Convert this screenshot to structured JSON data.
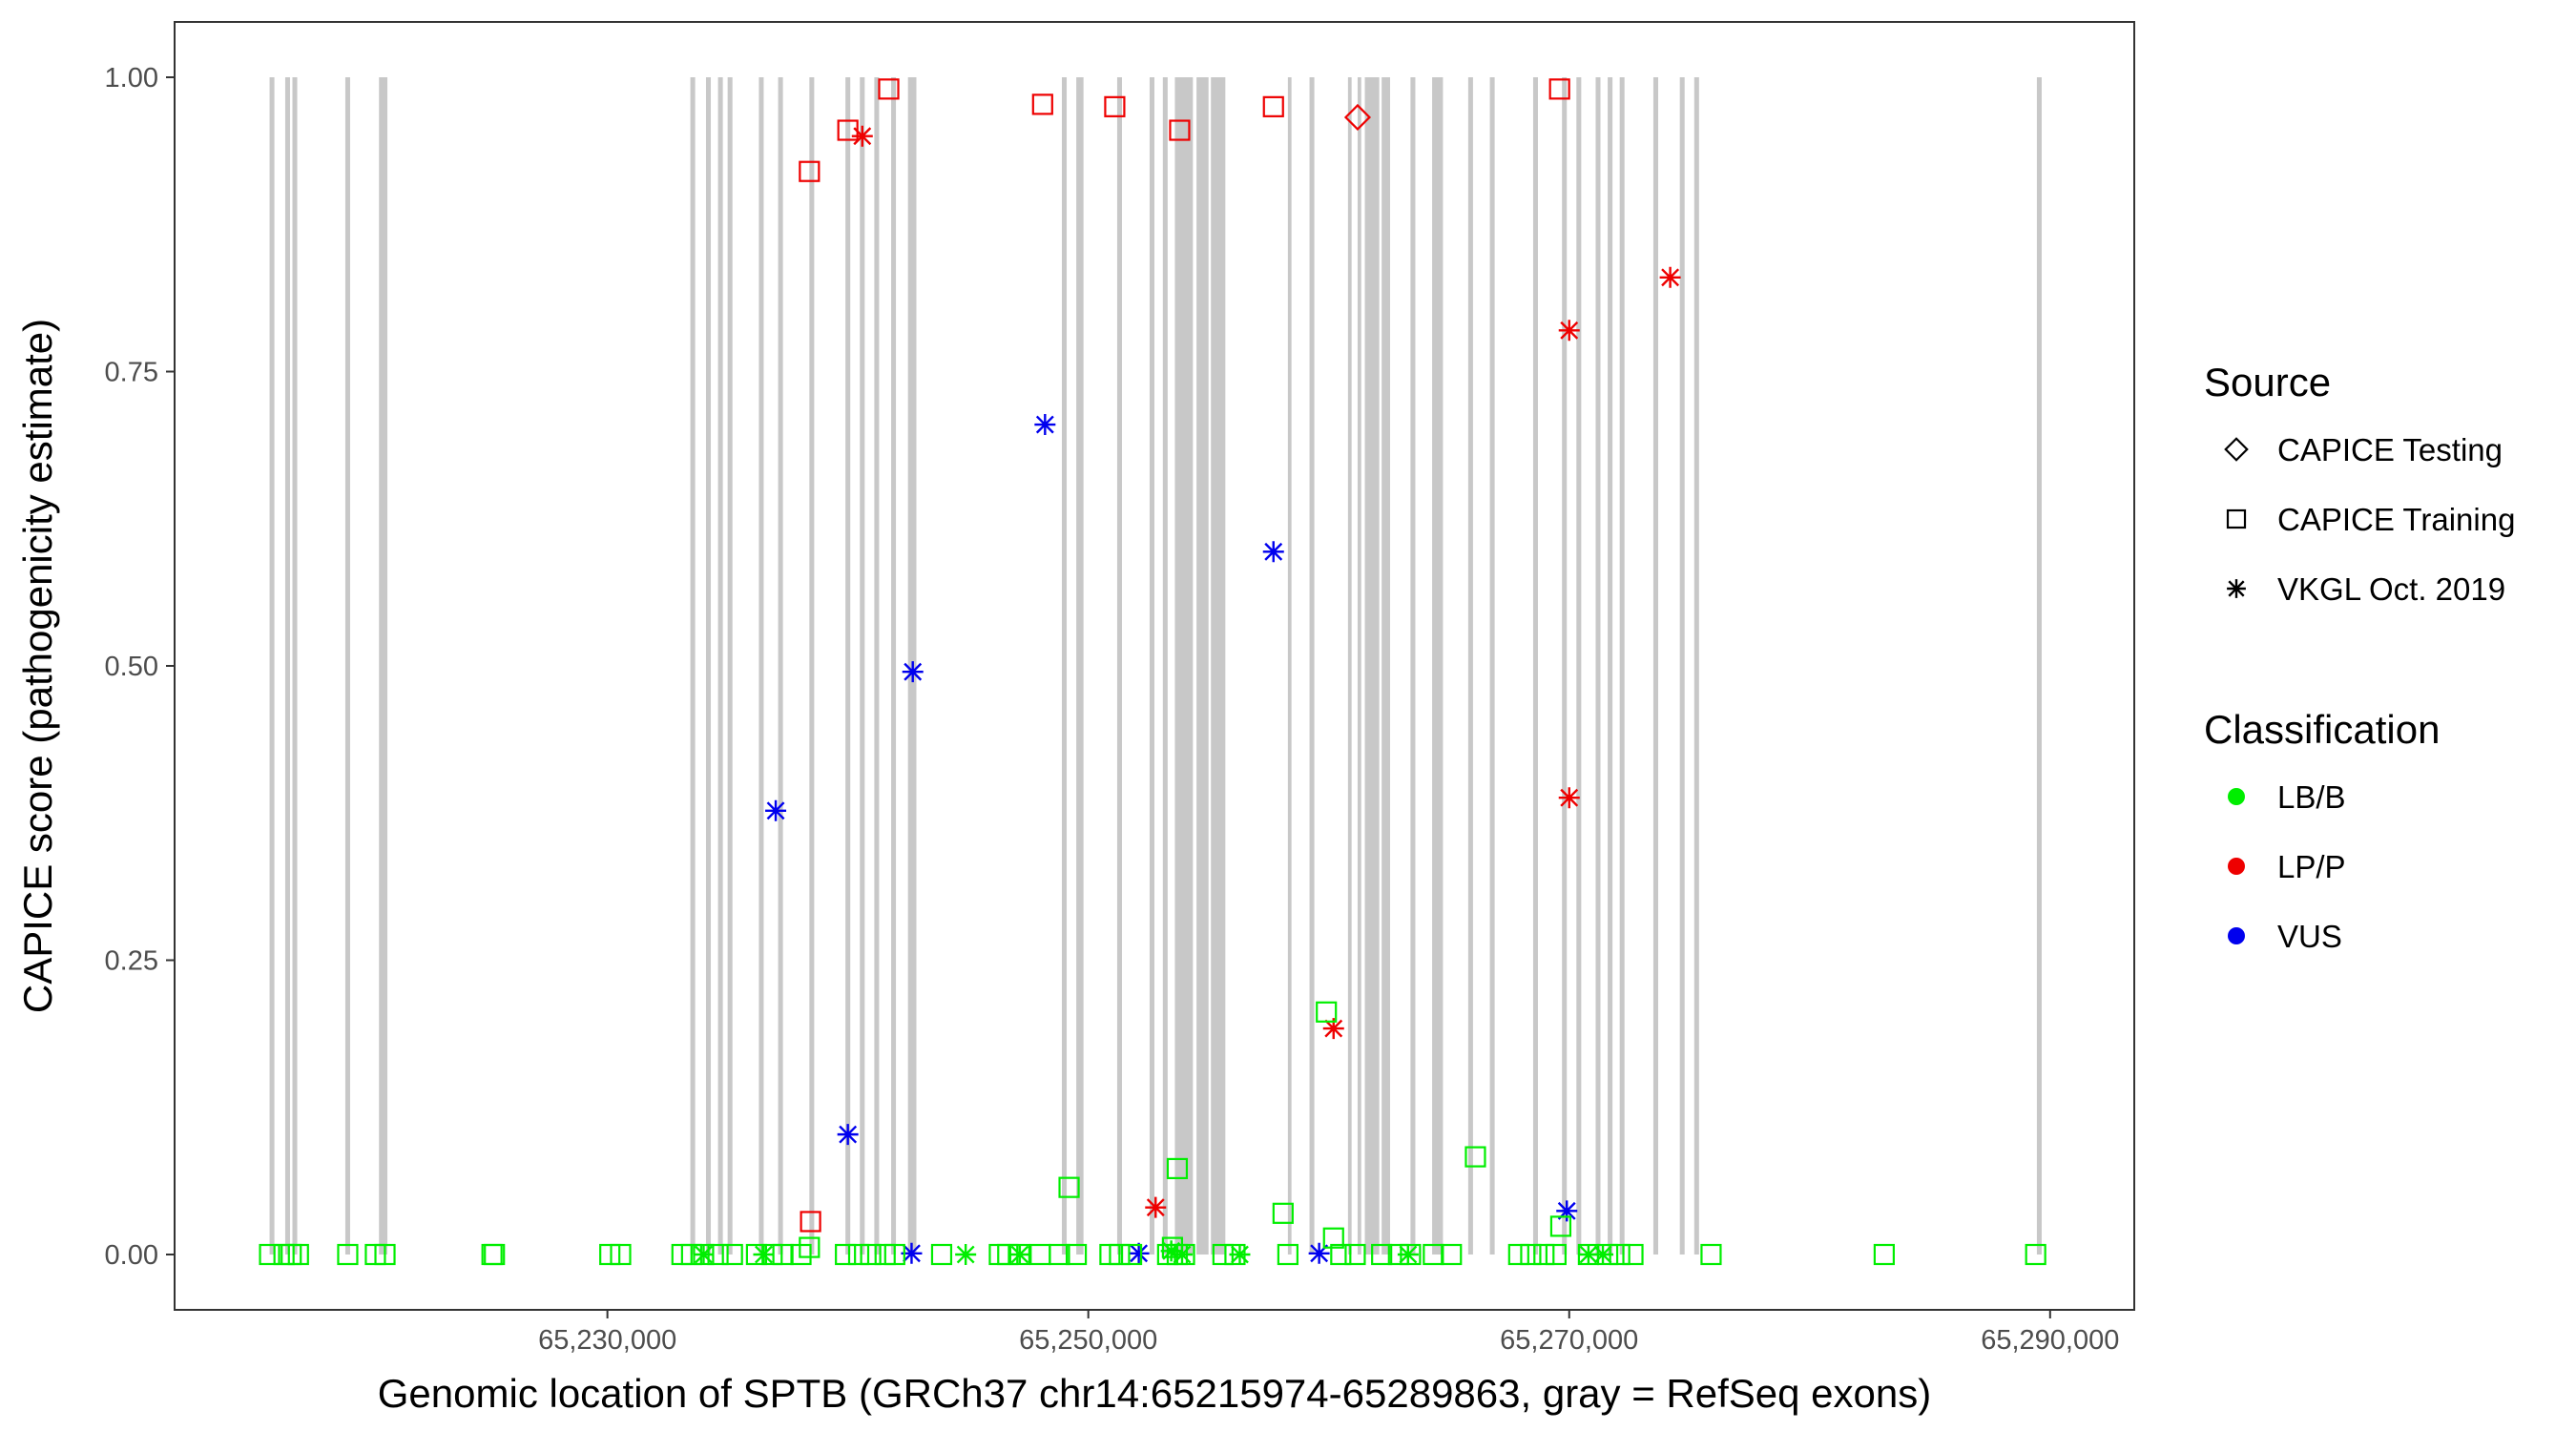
{
  "chart_data": {
    "type": "scatter",
    "title": "",
    "xlabel": "Genomic location of SPTB (GRCh37 chr14:65215974-65289863, gray = RefSeq exons)",
    "ylabel": "CAPICE score (pathogenicity estimate)",
    "xlim": [
      65212000,
      65293500
    ],
    "ylim": [
      -0.047,
      1.047
    ],
    "x_ticks": [
      65230000,
      65250000,
      65270000,
      65290000
    ],
    "x_tick_labels": [
      "65,230,000",
      "65,250,000",
      "65,270,000",
      "65,290,000"
    ],
    "y_ticks": [
      0,
      0.25,
      0.5,
      0.75,
      1
    ],
    "y_tick_labels": [
      "0.00",
      "0.25",
      "0.50",
      "0.75",
      "1.00"
    ],
    "grid": false,
    "exon_color": "#c8c8c8",
    "exons": [
      [
        65215950,
        65216150
      ],
      [
        65216600,
        65216800
      ],
      [
        65216900,
        65217100
      ],
      [
        65219100,
        65219300
      ],
      [
        65220500,
        65220850
      ],
      [
        65233450,
        65233650
      ],
      [
        65234100,
        65234300
      ],
      [
        65234600,
        65234800
      ],
      [
        65235000,
        65235200
      ],
      [
        65236300,
        65236500
      ],
      [
        65237100,
        65237300
      ],
      [
        65238400,
        65238600
      ],
      [
        65239900,
        65240100
      ],
      [
        65240500,
        65240700
      ],
      [
        65241100,
        65241300
      ],
      [
        65241800,
        65242000
      ],
      [
        65242500,
        65242850
      ],
      [
        65248900,
        65249100
      ],
      [
        65249500,
        65249800
      ],
      [
        65251200,
        65251400
      ],
      [
        65252550,
        65252750
      ],
      [
        65253100,
        65253300
      ],
      [
        65253600,
        65254350
      ],
      [
        65254500,
        65255000
      ],
      [
        65255100,
        65255700
      ],
      [
        65258300,
        65258450
      ],
      [
        65259200,
        65259400
      ],
      [
        65260800,
        65260950
      ],
      [
        65261200,
        65261350
      ],
      [
        65261500,
        65262100
      ],
      [
        65262200,
        65262550
      ],
      [
        65263400,
        65263600
      ],
      [
        65264300,
        65264750
      ],
      [
        65265800,
        65266000
      ],
      [
        65266700,
        65266900
      ],
      [
        65268500,
        65268700
      ],
      [
        65269700,
        65269900
      ],
      [
        65270300,
        65270500
      ],
      [
        65271100,
        65271300
      ],
      [
        65271600,
        65271800
      ],
      [
        65272100,
        65272300
      ],
      [
        65273500,
        65273700
      ],
      [
        65274600,
        65274800
      ],
      [
        65275200,
        65275400
      ],
      [
        65289450,
        65289650
      ]
    ],
    "colors": {
      "LB/B": "#00ee00",
      "LP/P": "#ee0000",
      "VUS": "#0000ee"
    },
    "legend": {
      "position": "right",
      "source_title": "Source",
      "source_items": [
        {
          "label": "CAPICE Testing",
          "shape": "diamond"
        },
        {
          "label": "CAPICE Training",
          "shape": "square"
        },
        {
          "label": "VKGL Oct. 2019",
          "shape": "asterisk"
        }
      ],
      "class_title": "Classification",
      "class_items": [
        {
          "label": "LB/B",
          "color": "#00ee00"
        },
        {
          "label": "LP/P",
          "color": "#ee0000"
        },
        {
          "label": "VUS",
          "color": "#0000ee"
        }
      ]
    },
    "series": [
      {
        "source": "CAPICE Training",
        "classification": "LP/P",
        "points": [
          [
            65238400,
            0.92
          ],
          [
            65240000,
            0.955
          ],
          [
            65241700,
            0.99
          ],
          [
            65248100,
            0.977
          ],
          [
            65251100,
            0.975
          ],
          [
            65253800,
            0.955
          ],
          [
            65257700,
            0.975
          ],
          [
            65269600,
            0.99
          ],
          [
            65238450,
            0.028
          ]
        ]
      },
      {
        "source": "CAPICE Testing",
        "classification": "LP/P",
        "points": [
          [
            65261200,
            0.966
          ]
        ]
      },
      {
        "source": "VKGL Oct. 2019",
        "classification": "LP/P",
        "points": [
          [
            65240600,
            0.95
          ],
          [
            65274200,
            0.83
          ],
          [
            65270000,
            0.785
          ],
          [
            65270000,
            0.388
          ],
          [
            65260200,
            0.192
          ],
          [
            65252800,
            0.04
          ]
        ]
      },
      {
        "source": "VKGL Oct. 2019",
        "classification": "VUS",
        "points": [
          [
            65248200,
            0.705
          ],
          [
            65242700,
            0.495
          ],
          [
            65237000,
            0.377
          ],
          [
            65257700,
            0.597
          ],
          [
            65240000,
            0.102
          ],
          [
            65269900,
            0.037
          ],
          [
            65242650,
            0.001
          ],
          [
            65252100,
            0.001
          ],
          [
            65259600,
            0.001
          ]
        ]
      },
      {
        "source": "CAPICE Training",
        "classification": "LB/B",
        "points": [
          [
            65259900,
            0.206
          ],
          [
            65249200,
            0.057
          ],
          [
            65253700,
            0.073
          ],
          [
            65258100,
            0.035
          ],
          [
            65266100,
            0.083
          ],
          [
            65269650,
            0.024
          ],
          [
            65260200,
            0.014
          ],
          [
            65238400,
            0.006
          ],
          [
            65253500,
            0.006
          ],
          [
            65215950,
            0
          ],
          [
            65216550,
            0
          ],
          [
            65216850,
            0
          ],
          [
            65217150,
            0
          ],
          [
            65219200,
            0
          ],
          [
            65220350,
            0
          ],
          [
            65220750,
            0
          ],
          [
            65225200,
            0
          ],
          [
            65225300,
            0
          ],
          [
            65230100,
            0
          ],
          [
            65230550,
            0
          ],
          [
            65233100,
            0
          ],
          [
            65233500,
            0
          ],
          [
            65234000,
            0
          ],
          [
            65234600,
            0
          ],
          [
            65235200,
            0
          ],
          [
            65236200,
            0
          ],
          [
            65236850,
            0
          ],
          [
            65237300,
            0
          ],
          [
            65238050,
            0
          ],
          [
            65239900,
            0
          ],
          [
            65240450,
            0
          ],
          [
            65240950,
            0
          ],
          [
            65241550,
            0
          ],
          [
            65241950,
            0
          ],
          [
            65243900,
            0
          ],
          [
            65246300,
            0
          ],
          [
            65246650,
            0
          ],
          [
            65247150,
            0
          ],
          [
            65248000,
            0
          ],
          [
            65248800,
            0
          ],
          [
            65249500,
            0
          ],
          [
            65250900,
            0
          ],
          [
            65251300,
            0
          ],
          [
            65251800,
            0
          ],
          [
            65253300,
            0
          ],
          [
            65253700,
            0
          ],
          [
            65254000,
            0
          ],
          [
            65255600,
            0
          ],
          [
            65256100,
            0
          ],
          [
            65258300,
            0
          ],
          [
            65260500,
            0
          ],
          [
            65261100,
            0
          ],
          [
            65262200,
            0
          ],
          [
            65262900,
            0
          ],
          [
            65263400,
            0
          ],
          [
            65264350,
            0
          ],
          [
            65265100,
            0
          ],
          [
            65267900,
            0
          ],
          [
            65268400,
            0
          ],
          [
            65268950,
            0
          ],
          [
            65269450,
            0
          ],
          [
            65270800,
            0
          ],
          [
            65271600,
            0
          ],
          [
            65272100,
            0
          ],
          [
            65272650,
            0
          ],
          [
            65275900,
            0
          ],
          [
            65283100,
            0
          ],
          [
            65289400,
            0
          ]
        ]
      },
      {
        "source": "VKGL Oct. 2019",
        "classification": "LB/B",
        "points": [
          [
            65234000,
            0
          ],
          [
            65236500,
            0
          ],
          [
            65244900,
            0
          ],
          [
            65247150,
            0
          ],
          [
            65253450,
            0.003
          ],
          [
            65253900,
            0
          ],
          [
            65256300,
            0
          ],
          [
            65263300,
            0
          ],
          [
            65270800,
            0
          ],
          [
            65271400,
            0
          ]
        ]
      }
    ]
  }
}
